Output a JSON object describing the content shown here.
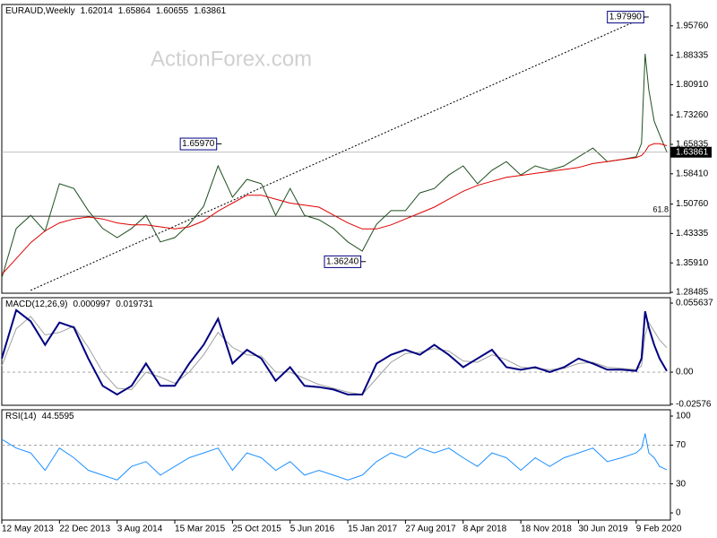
{
  "chart_data": [
    {
      "type": "line",
      "title": "EURAUD,Weekly",
      "ohlc": [
        1.62014,
        1.65864,
        1.60655,
        1.63861
      ],
      "watermark": "ActionForex.com",
      "xlim": [
        "2013-05-12",
        "2020-06-21"
      ],
      "ylim": [
        1.2826,
        2.0115
      ],
      "yticks": [
        {
          "value": 1.9576,
          "label": "1.95760"
        },
        1.88335,
        {
          "value": 1.8091,
          "label": "1.80910"
        },
        {
          "value": 1.7326,
          "label": "1.73260"
        },
        1.65835,
        {
          "value": 1.5841,
          "label": "1.58410"
        },
        {
          "value": 1.5076,
          "label": "1.50760"
        },
        1.43335,
        {
          "value": 1.3591,
          "label": "1.35910"
        },
        1.28485
      ],
      "x": [
        "2013-05-12",
        "2013-07-07",
        "2013-09-01",
        "2013-10-27",
        "2013-12-22",
        "2014-02-16",
        "2014-04-13",
        "2014-06-08",
        "2014-08-03",
        "2014-09-28",
        "2014-11-23",
        "2015-01-18",
        "2015-03-15",
        "2015-05-10",
        "2015-07-05",
        "2015-08-30",
        "2015-10-25",
        "2015-12-20",
        "2016-02-14",
        "2016-04-10",
        "2016-06-05",
        "2016-07-31",
        "2016-09-25",
        "2016-11-20",
        "2017-01-15",
        "2017-03-12",
        "2017-05-07",
        "2017-07-02",
        "2017-08-27",
        "2017-10-22",
        "2017-12-17",
        "2018-02-11",
        "2018-04-08",
        "2018-06-03",
        "2018-07-29",
        "2018-09-23",
        "2018-11-18",
        "2019-01-13",
        "2019-03-10",
        "2019-05-05",
        "2019-06-30",
        "2019-08-25",
        "2019-10-20",
        "2019-12-15",
        "2020-02-09",
        "2020-03-01",
        "2020-03-15",
        "2020-03-29",
        "2020-04-19",
        "2020-05-10",
        "2020-06-07"
      ],
      "series": [
        {
          "color": "#1f4f1f",
          "values": [
            1.321,
            1.446,
            1.479,
            1.439,
            1.559,
            1.547,
            1.491,
            1.446,
            1.423,
            1.446,
            1.479,
            1.412,
            1.423,
            1.457,
            1.502,
            1.604,
            1.525,
            1.57,
            1.559,
            1.479,
            1.547,
            1.479,
            1.468,
            1.446,
            1.412,
            1.389,
            1.457,
            1.491,
            1.491,
            1.536,
            1.547,
            1.581,
            1.604,
            1.559,
            1.593,
            1.615,
            1.581,
            1.604,
            1.593,
            1.604,
            1.627,
            1.649,
            1.615,
            1.62,
            1.627,
            1.661,
            1.887,
            1.796,
            1.717,
            1.683,
            1.639
          ]
        },
        {
          "color": "#e00000",
          "values": [
            1.33,
            1.37,
            1.41,
            1.44,
            1.46,
            1.47,
            1.475,
            1.47,
            1.46,
            1.455,
            1.455,
            1.45,
            1.445,
            1.45,
            1.465,
            1.49,
            1.51,
            1.53,
            1.53,
            1.52,
            1.51,
            1.505,
            1.5,
            1.48,
            1.46,
            1.445,
            1.445,
            1.455,
            1.47,
            1.485,
            1.5,
            1.52,
            1.54,
            1.555,
            1.565,
            1.575,
            1.58,
            1.585,
            1.59,
            1.595,
            1.6,
            1.61,
            1.615,
            1.62,
            1.625,
            1.63,
            1.64,
            1.655,
            1.66,
            1.66,
            1.655
          ]
        }
      ],
      "levels": [
        {
          "value": 1.477,
          "label": "61.8"
        }
      ],
      "trendline": {
        "x": [
          "2013-09-01",
          "2020-03-15"
        ],
        "values": [
          1.29,
          1.98
        ]
      },
      "annotations": [
        {
          "x": "2020-03-15",
          "value": 1.9799,
          "label": "1.97990"
        },
        {
          "x": "2015-08-30",
          "value": 1.6597,
          "label": "1.65970"
        },
        {
          "x": "2017-03-12",
          "value": 1.3624,
          "label": "1.36240"
        }
      ]
    },
    {
      "type": "line",
      "title": "MACD(12,26,9)",
      "indicator_values": [
        0.000997,
        0.019731
      ],
      "xlim": [
        "2013-05-12",
        "2020-06-21"
      ],
      "ylim": [
        -0.0267,
        0.06
      ],
      "yticks": [
        0.055637,
        {
          "value": 0,
          "label": "0.00"
        },
        -0.02576
      ],
      "levels": [
        0
      ],
      "x": [
        "2013-05-12",
        "2013-07-07",
        "2013-09-01",
        "2013-10-27",
        "2013-12-22",
        "2014-02-16",
        "2014-04-13",
        "2014-06-08",
        "2014-08-03",
        "2014-09-28",
        "2014-11-23",
        "2015-01-18",
        "2015-03-15",
        "2015-05-10",
        "2015-07-05",
        "2015-08-30",
        "2015-10-25",
        "2015-12-20",
        "2016-02-14",
        "2016-04-10",
        "2016-06-05",
        "2016-07-31",
        "2016-09-25",
        "2016-11-20",
        "2017-01-15",
        "2017-03-12",
        "2017-05-07",
        "2017-07-02",
        "2017-08-27",
        "2017-10-22",
        "2017-12-17",
        "2018-02-11",
        "2018-04-08",
        "2018-06-03",
        "2018-07-29",
        "2018-09-23",
        "2018-11-18",
        "2019-01-13",
        "2019-03-10",
        "2019-05-05",
        "2019-06-30",
        "2019-08-25",
        "2019-10-20",
        "2019-12-15",
        "2020-02-09",
        "2020-03-01",
        "2020-03-15",
        "2020-03-29",
        "2020-04-19",
        "2020-05-10",
        "2020-06-07"
      ],
      "series": [
        {
          "color": "#a0a0a0",
          "values": [
            0.005,
            0.035,
            0.045,
            0.03,
            0.032,
            0.037,
            0.02,
            0.0,
            -0.013,
            -0.014,
            0.0,
            -0.004,
            -0.009,
            0.0,
            0.014,
            0.032,
            0.02,
            0.014,
            0.013,
            0.0,
            0.0,
            -0.005,
            -0.01,
            -0.013,
            -0.016,
            -0.018,
            -0.005,
            0.008,
            0.015,
            0.016,
            0.019,
            0.017,
            0.009,
            0.008,
            0.014,
            0.01,
            0.004,
            0.003,
            0.002,
            0.003,
            0.007,
            0.008,
            0.004,
            0.003,
            0.002,
            0.005,
            0.03,
            0.04,
            0.033,
            0.026,
            0.0197
          ]
        },
        {
          "color": "#000080",
          "values": [
            0.011,
            0.05,
            0.041,
            0.022,
            0.04,
            0.036,
            0.011,
            -0.011,
            -0.018,
            -0.011,
            0.007,
            -0.011,
            -0.011,
            0.007,
            0.022,
            0.043,
            0.007,
            0.018,
            0.011,
            -0.007,
            0.004,
            -0.011,
            -0.012,
            -0.014,
            -0.018,
            -0.018,
            0.007,
            0.014,
            0.018,
            0.014,
            0.022,
            0.014,
            0.004,
            0.011,
            0.018,
            0.004,
            0.002,
            0.004,
            0.0,
            0.004,
            0.011,
            0.007,
            0.002,
            0.002,
            0.001,
            0.011,
            0.049,
            0.036,
            0.022,
            0.011,
            0.001
          ]
        }
      ]
    },
    {
      "type": "line",
      "title": "RSI(14)",
      "indicator_values": [
        44.5595
      ],
      "xlim": [
        "2013-05-12",
        "2020-06-21"
      ],
      "ylim": [
        -7.4,
        106.5
      ],
      "yticks": [
        100,
        70,
        30,
        0
      ],
      "levels": [
        70,
        30
      ],
      "xticks": [
        {
          "value": "2013-05-12",
          "label": "12 May 2013"
        },
        {
          "value": "2013-12-22",
          "label": "22 Dec 2013"
        },
        {
          "value": "2014-08-03",
          "label": "3 Aug 2014"
        },
        {
          "value": "2015-03-15",
          "label": "15 Mar 2015"
        },
        {
          "value": "2015-10-25",
          "label": "25 Oct 2015"
        },
        {
          "value": "2016-06-05",
          "label": "5 Jun 2016"
        },
        {
          "value": "2017-01-15",
          "label": "15 Jan 2017"
        },
        {
          "value": "2017-08-27",
          "label": "27 Aug 2017"
        },
        {
          "value": "2018-04-08",
          "label": "8 Apr 2018"
        },
        {
          "value": "2018-11-18",
          "label": "18 Nov 2018"
        },
        {
          "value": "2019-06-30",
          "label": "30 Jun 2019"
        },
        {
          "value": "2020-02-09",
          "label": "9 Feb 2020"
        }
      ],
      "x": [
        "2013-05-12",
        "2013-07-07",
        "2013-09-01",
        "2013-10-27",
        "2013-12-22",
        "2014-02-16",
        "2014-04-13",
        "2014-06-08",
        "2014-08-03",
        "2014-09-28",
        "2014-11-23",
        "2015-01-18",
        "2015-03-15",
        "2015-05-10",
        "2015-07-05",
        "2015-08-30",
        "2015-10-25",
        "2015-12-20",
        "2016-02-14",
        "2016-04-10",
        "2016-06-05",
        "2016-07-31",
        "2016-09-25",
        "2016-11-20",
        "2017-01-15",
        "2017-03-12",
        "2017-05-07",
        "2017-07-02",
        "2017-08-27",
        "2017-10-22",
        "2017-12-17",
        "2018-02-11",
        "2018-04-08",
        "2018-06-03",
        "2018-07-29",
        "2018-09-23",
        "2018-11-18",
        "2019-01-13",
        "2019-03-10",
        "2019-05-05",
        "2019-06-30",
        "2019-08-25",
        "2019-10-20",
        "2019-12-15",
        "2020-02-09",
        "2020-03-01",
        "2020-03-15",
        "2020-03-29",
        "2020-04-19",
        "2020-05-10",
        "2020-06-07"
      ],
      "series": [
        {
          "color": "#1e90ff",
          "values": [
            76,
            67,
            62,
            44,
            67,
            57,
            44,
            39,
            34,
            48,
            53,
            39,
            48,
            57,
            62,
            67,
            44,
            62,
            57,
            44,
            53,
            39,
            44,
            39,
            34,
            39,
            53,
            62,
            57,
            67,
            62,
            67,
            57,
            48,
            62,
            57,
            44,
            57,
            48,
            57,
            62,
            67,
            53,
            57,
            62,
            67,
            82,
            62,
            57,
            48,
            44.56
          ]
        }
      ]
    }
  ]
}
